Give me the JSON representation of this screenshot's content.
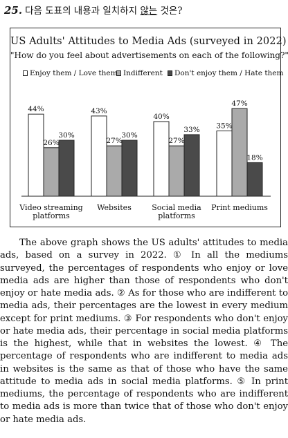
{
  "question": {
    "number": "25.",
    "text_before": "다음 도표의 내용과 일치하지 ",
    "text_underlined": "않는",
    "text_after": " 것은?"
  },
  "chart_data": {
    "type": "bar",
    "title": "US Adults' Attitudes to Media Ads (surveyed in 2022)",
    "subtitle": "\"How do you feel about advertisements on each of the following?\"",
    "categories": [
      [
        "Video streaming",
        "platforms"
      ],
      [
        "Websites"
      ],
      [
        "Social media",
        "platforms"
      ],
      [
        "Print mediums"
      ]
    ],
    "series": [
      {
        "name": "Enjoy them / Love them",
        "values": [
          44,
          43,
          40,
          35
        ],
        "labels": [
          "44%",
          "43%",
          "40%",
          "35%"
        ],
        "color": "#ffffff"
      },
      {
        "name": "Indifferent",
        "values": [
          26,
          27,
          27,
          47
        ],
        "labels": [
          "26%",
          "27%",
          "27%",
          "47%"
        ],
        "color": "#aaaaaa"
      },
      {
        "name": "Don't enjoy them / Hate them",
        "values": [
          30,
          30,
          33,
          18
        ],
        "labels": [
          "30%",
          "30%",
          "33%",
          "18%"
        ],
        "color": "#4a4a4a"
      }
    ],
    "ylim": [
      0,
      50
    ],
    "grid": false,
    "legend_position": "top"
  },
  "passage": {
    "sentences": [
      "The above graph shows the US adults' attitudes to media ads, based on a survey in 2022.",
      "① In all the mediums surveyed, the percentages of respondents who enjoy or love media ads are higher than those of respondents who don't enjoy or hate media ads.",
      "② As for those who are indifferent to media ads, their percentages are the lowest in every medium except for print mediums.",
      "③ For respondents who don't enjoy or hate media ads, their percentage in social media platforms is the highest, while that in websites the lowest.",
      "④ The percentage of respondents who are indifferent to media ads in websites is the same as that of those who have the same attitude to media ads in social media platforms.",
      "⑤ In print mediums, the percentage of respondents who are indifferent to media ads is more than twice that of those who don't enjoy or hate media ads."
    ]
  }
}
